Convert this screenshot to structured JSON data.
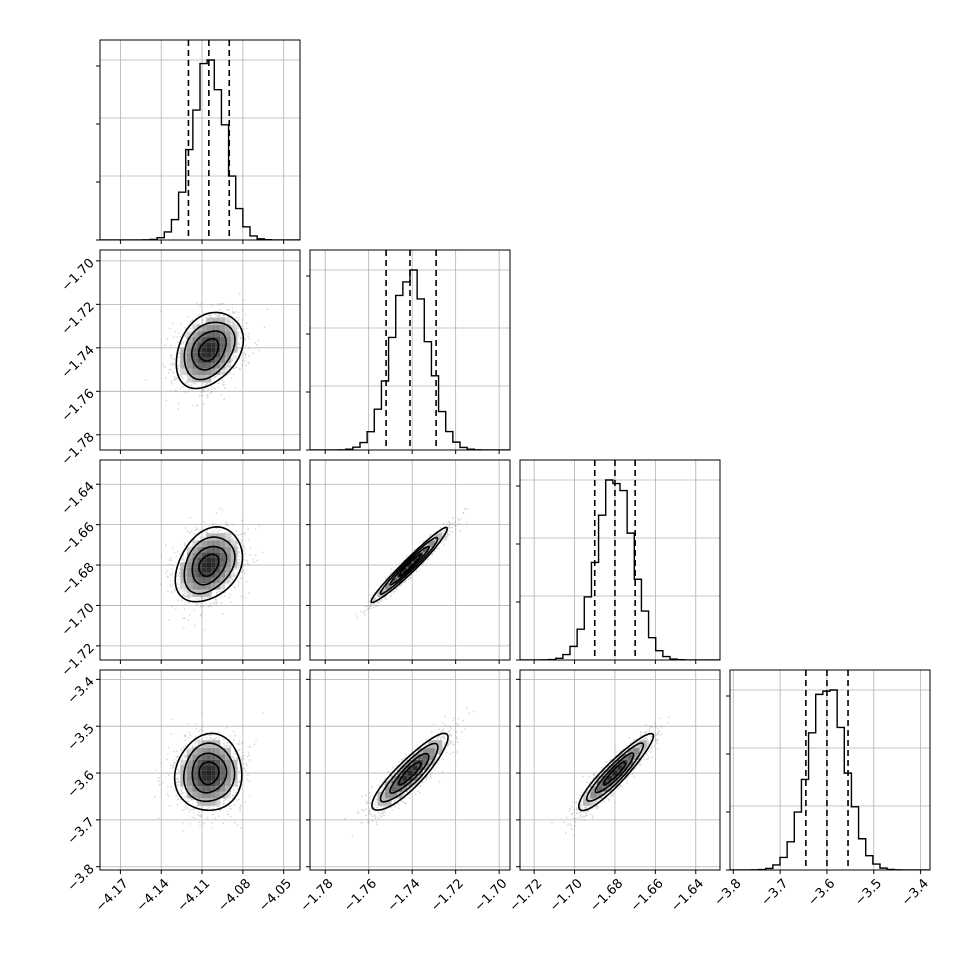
{
  "chart_data": {
    "type": "corner",
    "parameters": [
      {
        "ticks": [
          -4.17,
          -4.14,
          -4.11,
          -4.08,
          -4.05
        ],
        "range": [
          -4.185,
          -4.038
        ],
        "quantiles": [
          -4.12,
          -4.105,
          -4.09
        ],
        "mean": -4.105,
        "sd": 0.012
      },
      {
        "ticks": [
          -1.78,
          -1.76,
          -1.74,
          -1.72,
          -1.7
        ],
        "range": [
          -1.787,
          -1.695
        ],
        "quantiles": [
          -1.752,
          -1.741,
          -1.729
        ],
        "mean": -1.741,
        "sd": 0.0085
      },
      {
        "ticks": [
          -1.72,
          -1.7,
          -1.68,
          -1.66,
          -1.64
        ],
        "range": [
          -1.727,
          -1.628
        ],
        "quantiles": [
          -1.69,
          -1.68,
          -1.67
        ],
        "mean": -1.68,
        "sd": 0.009
      },
      {
        "ticks": [
          -3.8,
          -3.7,
          -3.6,
          -3.5,
          -3.4
        ],
        "range": [
          -3.807,
          -3.38
        ],
        "quantiles": [
          -3.645,
          -3.6,
          -3.555
        ],
        "mean": -3.6,
        "sd": 0.04
      }
    ],
    "x_tick_labels": [
      [
        "−4.17",
        "−4.14",
        "−4.11",
        "−4.08",
        "−4.05"
      ],
      [
        "−1.78",
        "−1.76",
        "−1.74",
        "−1.72",
        "−1.70"
      ],
      [
        "−1.72",
        "−1.70",
        "−1.68",
        "−1.66",
        "−1.64"
      ],
      [
        "−3.8",
        "−3.7",
        "−3.6",
        "−3.5",
        "−3.4"
      ]
    ],
    "y_tick_labels": [
      [],
      [
        "−1.70",
        "−1.72",
        "−1.74",
        "−1.76",
        "−1.78"
      ],
      [
        "−1.64",
        "−1.66",
        "−1.68",
        "−1.70",
        "−1.72"
      ],
      [
        "−3.4",
        "−3.5",
        "−3.6",
        "−3.7",
        "−3.8"
      ]
    ],
    "y_tick_values": [
      [],
      [
        -1.7,
        -1.72,
        -1.74,
        -1.76,
        -1.78
      ],
      [
        -1.64,
        -1.66,
        -1.68,
        -1.7,
        -1.72
      ],
      [
        -3.4,
        -3.5,
        -3.6,
        -3.7,
        -3.8
      ]
    ],
    "correlations": {
      "1-0": 0.3,
      "2-0": 0.3,
      "3-0": 0.05,
      "2-1": 0.97,
      "3-1": 0.88,
      "3-2": 0.92
    },
    "grid": true,
    "colors": {
      "scatter": "#888888",
      "contour": "#000000",
      "quantile_line": "#000000",
      "grid": "#b0b0b0"
    }
  }
}
